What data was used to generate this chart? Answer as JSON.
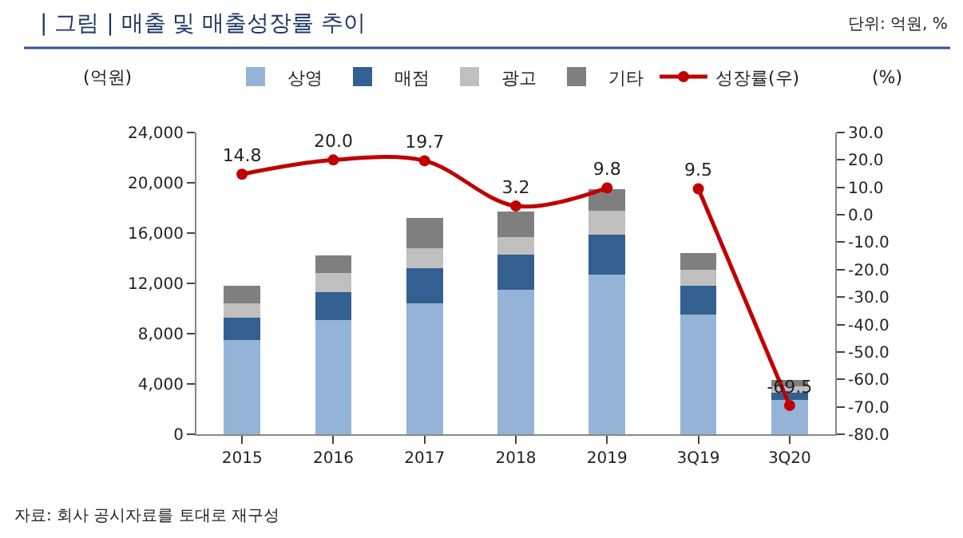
{
  "chart_data": {
    "type": "bar",
    "title": "| 그림 | 매출 및 매출성장률 추이",
    "subtitle": "단위: 억원, %",
    "ylabel": "(억원)",
    "y2label": "(%)",
    "categories": [
      "2015",
      "2016",
      "2017",
      "2018",
      "2019",
      "3Q19",
      "3Q20"
    ],
    "stacked": true,
    "series": [
      {
        "name": "상영",
        "color": "#95b3d7",
        "values": [
          7500,
          9100,
          10400,
          11500,
          12700,
          9500,
          2700
        ]
      },
      {
        "name": "매점",
        "color": "#335f91",
        "values": [
          1800,
          2200,
          2800,
          2800,
          3200,
          2300,
          600
        ]
      },
      {
        "name": "광고",
        "color": "#bfbfbf",
        "values": [
          1100,
          1500,
          1600,
          1400,
          1900,
          1300,
          500
        ]
      },
      {
        "name": "기타",
        "color": "#7f7f7f",
        "values": [
          1400,
          1400,
          2400,
          2000,
          1700,
          1300,
          500
        ]
      },
      {
        "name": "성장률(우)",
        "type": "line",
        "axis": "y2",
        "color": "#c00000",
        "marker": "circle",
        "values": [
          14.8,
          20.0,
          19.7,
          3.2,
          9.8,
          null,
          null
        ],
        "value_labels": [
          "14.8",
          "20.0",
          "19.7",
          "3.2",
          "9.8",
          null,
          null
        ]
      },
      {
        "type": "line",
        "axis": "y2",
        "color": "#c00000",
        "marker": "circle",
        "values": [
          null,
          null,
          null,
          null,
          null,
          9.5,
          -69.5
        ],
        "value_labels": [
          null,
          null,
          null,
          null,
          null,
          "9.5",
          "-69.5"
        ]
      }
    ],
    "ylim": [
      0,
      24000
    ],
    "yticks": [
      0,
      {
        "value": 4000,
        "label": "4,000"
      },
      {
        "value": 8000,
        "label": "8,000"
      },
      {
        "value": 12000,
        "label": "12,000"
      },
      {
        "value": 16000,
        "label": "16,000"
      },
      {
        "value": 20000,
        "label": "20,000"
      },
      {
        "value": 24000,
        "label": "24,000"
      }
    ],
    "y2lim": [
      -80,
      30
    ],
    "y2ticks": [
      {
        "value": -80,
        "label": "-80.0"
      },
      {
        "value": -70,
        "label": "-70.0"
      },
      {
        "value": -60,
        "label": "-60.0"
      },
      {
        "value": -50,
        "label": "-50.0"
      },
      {
        "value": -40,
        "label": "-40.0"
      },
      {
        "value": -30,
        "label": "-30.0"
      },
      {
        "value": -20,
        "label": "-20.0"
      },
      {
        "value": -10,
        "label": "-10.0"
      },
      {
        "value": 0,
        "label": "0.0"
      },
      {
        "value": 10,
        "label": "10.0"
      },
      {
        "value": 20,
        "label": "20.0"
      },
      {
        "value": 30,
        "label": "30.0"
      }
    ],
    "legend": "top",
    "annotations": [
      "자료: 회사 공시자료를 토대로 재구성"
    ]
  }
}
